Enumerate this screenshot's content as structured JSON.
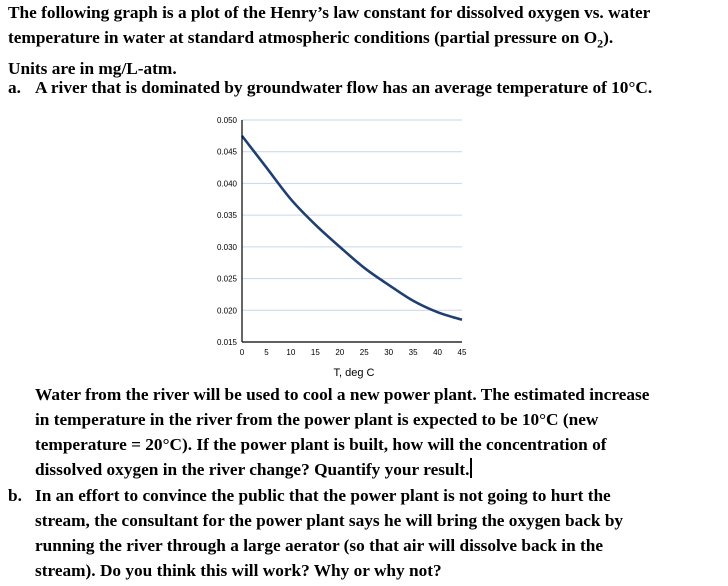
{
  "intro": {
    "line1": "The following graph is a plot of the Henry’s law constant for dissolved oxygen vs. water",
    "line2_a": "temperature in water at standard atmospheric conditions (partial pressure on O",
    "line2_sub": "2",
    "line2_b": ").",
    "line3": "Units are in mg/L-atm."
  },
  "part_a": {
    "label": "a.",
    "question": "A river that is dominated by groundwater flow has an average temperature of 10°C.",
    "follow_lines": [
      "Water from the river will be used to cool a new power plant. The estimated increase",
      "in temperature in the river from the power plant is expected to be 10°C (new",
      "temperature = 20°C). If the power plant is built, how will the concentration of",
      "dissolved oxygen in the river change? Quantify your result."
    ]
  },
  "part_b": {
    "label": "b.",
    "lines": [
      "In an effort to convince the public that the power plant is not going to hurt the",
      "stream, the consultant for the power plant says he will bring the oxygen back by",
      "running the river through a large aerator (so that air will dissolve back in the",
      "stream). Do you think this will work? Why or why not?"
    ]
  },
  "chart_data": {
    "type": "line",
    "title": "",
    "xlabel": "T, deg C",
    "ylabel": "",
    "xlim": [
      0,
      45
    ],
    "ylim": [
      0.015,
      0.05
    ],
    "x_ticks": [
      "0",
      "5",
      "10",
      "15",
      "20",
      "25",
      "30",
      "35",
      "40",
      "45"
    ],
    "y_ticks": [
      "0.015",
      "0.020",
      "0.025",
      "0.030",
      "0.035",
      "0.040",
      "0.045",
      "0.050"
    ],
    "grid": true,
    "line_color": "#1f3f73",
    "series": [
      {
        "x": [
          0,
          5,
          10,
          15,
          20,
          25,
          30,
          35,
          40,
          45
        ],
        "values": [
          0.0475,
          0.0425,
          0.0375,
          0.0335,
          0.03,
          0.0267,
          0.024,
          0.0215,
          0.0197,
          0.0185
        ]
      }
    ]
  }
}
